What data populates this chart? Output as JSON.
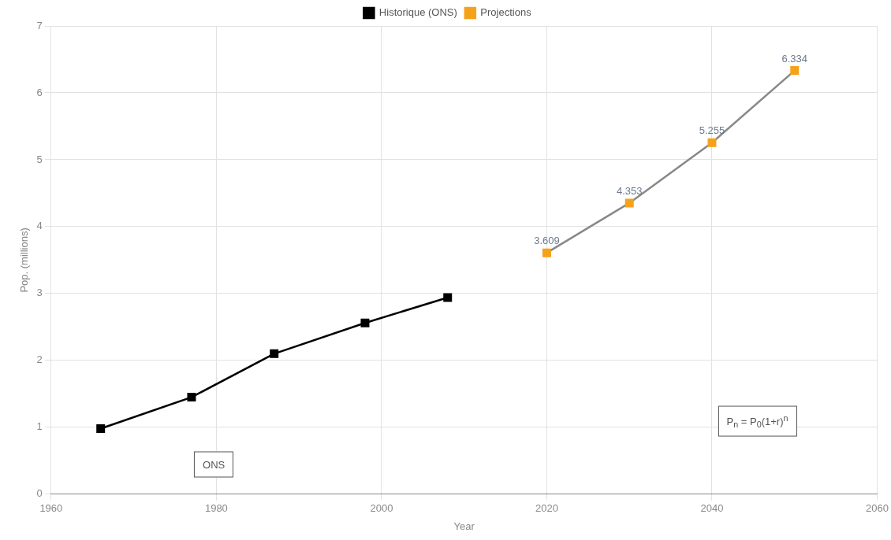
{
  "chart_data": {
    "type": "line",
    "xlabel": "Year",
    "ylabel": "Pop. (millions)",
    "xlim": [
      1960,
      2060
    ],
    "xticks": [
      1960,
      1980,
      2000,
      2020,
      2040,
      2060
    ],
    "ylim": [
      0,
      7
    ],
    "yticks": [
      0,
      1,
      2,
      3,
      4,
      5,
      6,
      7
    ],
    "series": [
      {
        "name": "Historique (ONS)",
        "color": "#000000",
        "x": [
          1966,
          1977,
          1987,
          1998,
          2008
        ],
        "values": [
          0.98,
          1.45,
          2.1,
          2.56,
          2.94
        ]
      },
      {
        "name": "Projections",
        "color": "#f5a21b",
        "x": [
          2020,
          2030,
          2040,
          2050
        ],
        "values": [
          3.609,
          4.353,
          5.255,
          6.334
        ],
        "value_labels": [
          "3.609",
          "4.353",
          "5.255",
          "6.334"
        ]
      }
    ],
    "annotations": [
      "ONS",
      "P$_{n}$ = P$_{0}$(1+r)$^{n}$"
    ],
    "grid": true,
    "legend": "top",
    "marker": "square",
    "line_style": "solid"
  }
}
